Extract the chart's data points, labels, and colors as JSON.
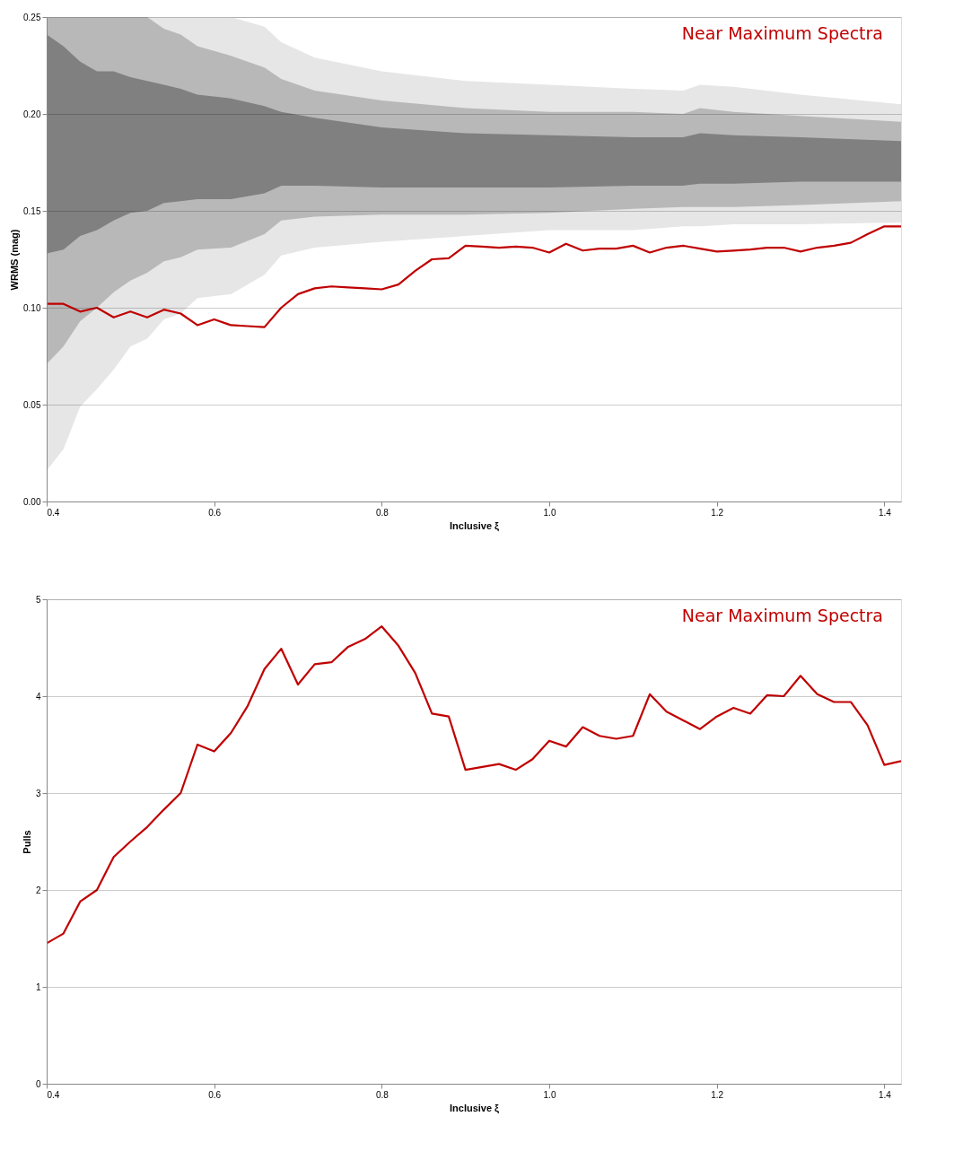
{
  "chart_data": [
    {
      "type": "line",
      "xlabel": "Inclusive ξ",
      "ylabel": "WRMS (mag)",
      "annotations": [
        "Near Maximum Spectra"
      ],
      "xlim": [
        0.4,
        1.42
      ],
      "ylim": [
        0,
        0.25
      ],
      "xticks": [
        0.4,
        0.6,
        0.8,
        {
          "value": 1.0,
          "label": "1.0"
        },
        1.2,
        1.4
      ],
      "yticks": [
        {
          "value": 0,
          "label": "0.00"
        },
        0.05,
        {
          "value": 0.1,
          "label": "0.10"
        },
        0.15,
        {
          "value": 0.2,
          "label": "0.20"
        },
        0.25
      ],
      "grid": "y",
      "legend": false,
      "line_style": "solid",
      "marker": "none",
      "series": [
        {
          "type": "area",
          "color": "#e6e6e6",
          "x": [
            0.4,
            0.42,
            0.44,
            0.46,
            0.48,
            0.5,
            0.52,
            0.54,
            0.56,
            0.58,
            0.62,
            0.66,
            0.68,
            0.72,
            0.8,
            0.9,
            1.0,
            1.1,
            1.16,
            1.18,
            1.22,
            1.3,
            1.42
          ],
          "values": [
            null,
            null,
            null,
            null,
            null,
            null,
            null,
            null,
            null,
            null,
            null,
            null,
            null,
            null,
            null,
            null,
            null,
            null,
            null,
            null,
            null,
            null,
            null
          ],
          "lower": [
            0.016,
            0.027,
            0.049,
            0.058,
            0.068,
            0.08,
            0.084,
            0.094,
            0.097,
            0.105,
            0.107,
            0.117,
            0.127,
            0.131,
            0.134,
            0.137,
            0.14,
            0.14,
            0.142,
            0.142,
            0.143,
            0.143,
            0.144
          ],
          "upper": [
            0.25,
            0.25,
            0.25,
            0.25,
            0.25,
            0.25,
            0.25,
            0.25,
            0.25,
            0.25,
            0.25,
            0.245,
            0.237,
            0.229,
            0.222,
            0.217,
            0.215,
            0.213,
            0.212,
            0.215,
            0.214,
            0.21,
            0.205
          ]
        },
        {
          "type": "area",
          "color": "#b8b8b8",
          "x": [
            0.4,
            0.42,
            0.44,
            0.46,
            0.48,
            0.5,
            0.52,
            0.54,
            0.56,
            0.58,
            0.62,
            0.66,
            0.68,
            0.72,
            0.8,
            0.9,
            1.0,
            1.1,
            1.16,
            1.18,
            1.22,
            1.3,
            1.42
          ],
          "values": [
            null,
            null,
            null,
            null,
            null,
            null,
            null,
            null,
            null,
            null,
            null,
            null,
            null,
            null,
            null,
            null,
            null,
            null,
            null,
            null,
            null,
            null,
            null
          ],
          "lower": [
            0.071,
            0.08,
            0.093,
            0.1,
            0.108,
            0.114,
            0.118,
            0.124,
            0.126,
            0.13,
            0.131,
            0.138,
            0.145,
            0.147,
            0.148,
            0.148,
            0.149,
            0.151,
            0.152,
            0.152,
            0.152,
            0.153,
            0.155
          ],
          "upper": [
            0.25,
            0.25,
            0.25,
            0.25,
            0.25,
            0.25,
            0.25,
            0.244,
            0.241,
            0.235,
            0.23,
            0.224,
            0.218,
            0.212,
            0.207,
            0.203,
            0.201,
            0.201,
            0.2,
            0.203,
            0.201,
            0.199,
            0.196
          ]
        },
        {
          "type": "area",
          "color": "#808080",
          "x": [
            0.4,
            0.42,
            0.44,
            0.46,
            0.48,
            0.5,
            0.52,
            0.54,
            0.56,
            0.58,
            0.62,
            0.66,
            0.68,
            0.72,
            0.8,
            0.9,
            1.0,
            1.1,
            1.16,
            1.18,
            1.22,
            1.3,
            1.42
          ],
          "values": [
            null,
            null,
            null,
            null,
            null,
            null,
            null,
            null,
            null,
            null,
            null,
            null,
            null,
            null,
            null,
            null,
            null,
            null,
            null,
            null,
            null,
            null,
            null
          ],
          "lower": [
            0.128,
            0.13,
            0.137,
            0.14,
            0.145,
            0.149,
            0.15,
            0.154,
            0.155,
            0.156,
            0.156,
            0.159,
            0.163,
            0.163,
            0.162,
            0.162,
            0.162,
            0.163,
            0.163,
            0.164,
            0.164,
            0.165,
            0.165
          ],
          "upper": [
            0.241,
            0.235,
            0.227,
            0.222,
            0.222,
            0.219,
            0.217,
            0.215,
            0.213,
            0.21,
            0.208,
            0.204,
            0.201,
            0.198,
            0.193,
            0.19,
            0.189,
            0.188,
            0.188,
            0.19,
            0.189,
            0.188,
            0.186
          ]
        },
        {
          "type": "line",
          "color": "#c00000",
          "x": [
            0.4,
            0.42,
            0.44,
            0.46,
            0.48,
            0.5,
            0.52,
            0.54,
            0.56,
            0.58,
            0.6,
            0.62,
            0.64,
            0.66,
            0.68,
            0.7,
            0.72,
            0.74,
            0.76,
            0.78,
            0.8,
            0.82,
            0.84,
            0.86,
            0.88,
            0.9,
            0.92,
            0.94,
            0.96,
            0.98,
            1.0,
            1.02,
            1.04,
            1.06,
            1.08,
            1.1,
            1.12,
            1.14,
            1.16,
            1.18,
            1.2,
            1.22,
            1.24,
            1.26,
            1.28,
            1.3,
            1.32,
            1.34,
            1.36,
            1.38,
            1.4,
            1.42
          ],
          "values": [
            0.102,
            0.102,
            0.098,
            0.1,
            0.095,
            0.098,
            0.095,
            0.099,
            0.097,
            0.091,
            0.094,
            0.091,
            0.0905,
            0.09,
            0.1,
            0.107,
            0.11,
            0.111,
            0.1105,
            0.11,
            0.1095,
            0.112,
            0.119,
            0.125,
            0.1255,
            0.132,
            0.1315,
            0.131,
            0.1315,
            0.131,
            0.1285,
            0.133,
            0.1295,
            0.1305,
            0.1305,
            0.132,
            0.1285,
            0.131,
            0.132,
            0.1305,
            0.129,
            0.1295,
            0.13,
            0.131,
            0.131,
            0.129,
            0.131,
            0.132,
            0.1335,
            0.138,
            0.142,
            0.142
          ]
        }
      ]
    },
    {
      "type": "line",
      "xlabel": "Inclusive ξ",
      "ylabel": "Pulls",
      "annotations": [
        "Near Maximum Spectra"
      ],
      "xlim": [
        0.4,
        1.42
      ],
      "ylim": [
        0,
        5
      ],
      "xticks": [
        0.4,
        0.6,
        0.8,
        {
          "value": 1.0,
          "label": "1.0"
        },
        1.2,
        1.4
      ],
      "yticks": [
        0,
        1,
        2,
        3,
        4,
        5
      ],
      "grid": "y",
      "legend": false,
      "line_style": "solid",
      "marker": "none",
      "series": [
        {
          "type": "line",
          "color": "#c00000",
          "x": [
            0.4,
            0.42,
            0.44,
            0.46,
            0.48,
            0.5,
            0.52,
            0.54,
            0.56,
            0.58,
            0.6,
            0.62,
            0.64,
            0.66,
            0.68,
            0.7,
            0.72,
            0.74,
            0.76,
            0.78,
            0.8,
            0.82,
            0.84,
            0.86,
            0.88,
            0.9,
            0.92,
            0.94,
            0.96,
            0.98,
            1.0,
            1.02,
            1.04,
            1.06,
            1.08,
            1.1,
            1.12,
            1.14,
            1.16,
            1.18,
            1.2,
            1.22,
            1.24,
            1.26,
            1.28,
            1.3,
            1.32,
            1.34,
            1.36,
            1.38,
            1.4,
            1.42
          ],
          "values": [
            1.45,
            1.55,
            1.88,
            2.0,
            2.34,
            2.5,
            2.65,
            2.83,
            3.0,
            3.5,
            3.43,
            3.62,
            3.9,
            4.28,
            4.49,
            4.12,
            4.33,
            4.35,
            4.51,
            4.59,
            4.72,
            4.52,
            4.24,
            3.82,
            3.79,
            3.24,
            3.27,
            3.3,
            3.24,
            3.35,
            3.54,
            3.48,
            3.68,
            3.59,
            3.56,
            3.59,
            4.02,
            3.84,
            3.75,
            3.66,
            3.79,
            3.88,
            3.82,
            4.01,
            4.0,
            4.21,
            4.02,
            3.94,
            3.94,
            3.7,
            3.29,
            3.33
          ]
        }
      ]
    }
  ]
}
